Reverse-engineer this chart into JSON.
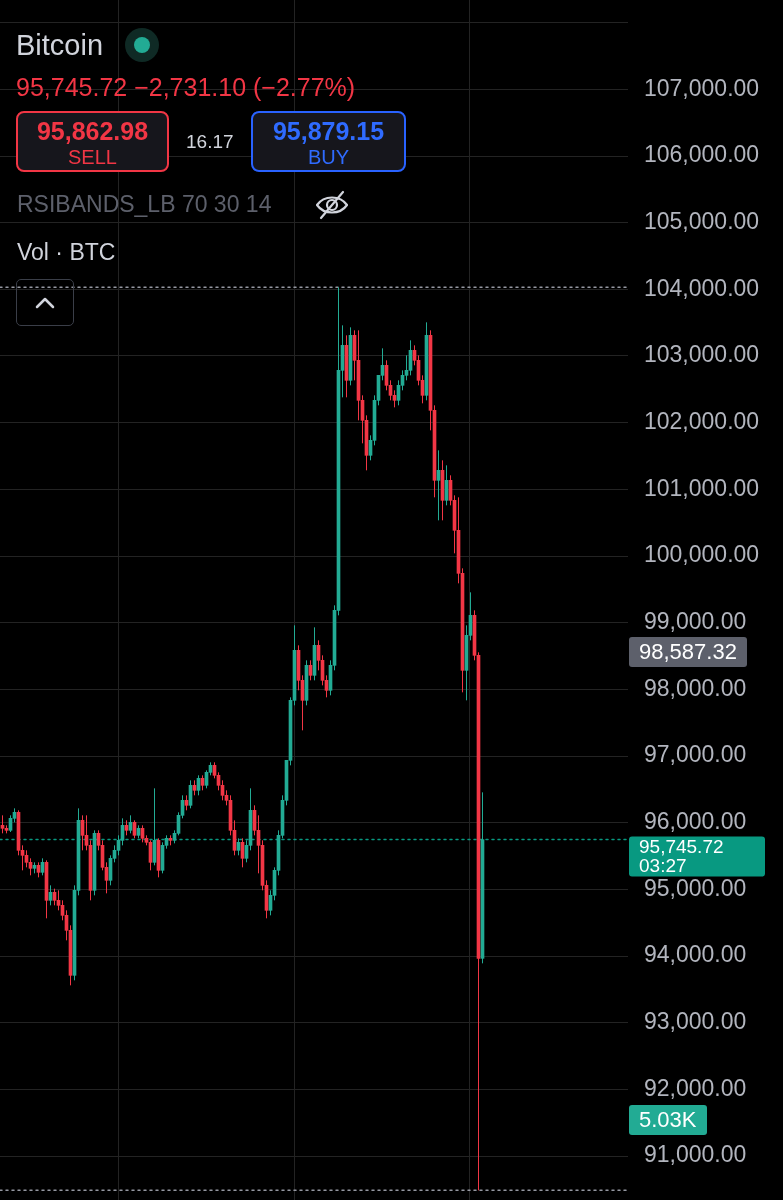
{
  "chart_data": {
    "type": "candlestick",
    "title": "Bitcoin",
    "subtitle": "95,745.72 −2,731.10 (−2.77%)",
    "annotations": [
      "95,862.98",
      "SELL",
      "16.17",
      "95,879.15",
      "BUY",
      "RSIBANDS_LB 70 30 14",
      "Vol · BTC",
      "98,587.32",
      "5.03K"
    ],
    "categories": [
      null,
      null,
      null,
      null,
      null,
      null,
      null,
      null,
      null,
      null,
      null,
      null,
      null,
      null,
      null,
      null,
      null,
      null,
      null,
      null,
      null,
      null,
      null,
      null,
      null,
      null,
      null,
      null,
      null,
      null,
      null,
      null,
      null,
      null,
      null,
      null,
      null,
      null,
      null,
      null,
      null,
      null,
      null,
      null,
      null,
      null,
      null,
      null,
      null,
      null,
      null,
      null,
      null,
      null,
      null,
      null,
      null,
      null,
      null,
      null,
      null,
      null,
      null,
      null,
      null,
      null,
      null,
      null,
      null,
      null,
      null,
      null,
      null,
      null,
      null,
      null,
      null,
      null,
      null,
      null,
      null,
      null,
      null,
      null,
      null,
      null,
      null,
      null,
      null,
      null,
      null,
      null,
      null,
      null,
      null,
      null,
      null,
      null,
      null,
      null,
      null,
      null,
      null,
      null,
      null,
      null,
      null,
      null,
      null,
      null,
      null,
      null,
      null,
      null,
      null,
      null,
      null,
      null,
      null,
      null,
      null,
      null,
      null,
      null,
      null,
      null,
      null,
      null,
      null,
      null,
      null,
      null,
      null,
      null,
      null,
      null,
      null,
      null,
      null,
      null,
      null,
      null,
      null,
      null,
      null,
      null,
      null,
      null,
      null,
      null,
      null,
      null,
      null,
      null,
      null,
      null,
      null
    ],
    "ohlc": [
      [
        95960,
        96110,
        95840,
        95915
      ],
      [
        95915,
        95960,
        95840,
        95885
      ],
      [
        95885,
        96110,
        95860,
        96065
      ],
      [
        96065,
        96215,
        96005,
        96155
      ],
      [
        96155,
        96185,
        95510,
        95585
      ],
      [
        95585,
        95660,
        95285,
        95510
      ],
      [
        95510,
        95585,
        95330,
        95405
      ],
      [
        95405,
        95465,
        95210,
        95315
      ],
      [
        95315,
        95405,
        95240,
        95360
      ],
      [
        95360,
        95405,
        95180,
        95255
      ],
      [
        95255,
        95465,
        95210,
        95405
      ],
      [
        95405,
        95435,
        94565,
        94835
      ],
      [
        94835,
        95060,
        94760,
        94955
      ],
      [
        94955,
        95010,
        94760,
        94835
      ],
      [
        94835,
        94985,
        94685,
        94760
      ],
      [
        94760,
        94835,
        94535,
        94610
      ],
      [
        94610,
        94685,
        94235,
        94385
      ],
      [
        94385,
        94460,
        93560,
        93710
      ],
      [
        93710,
        95060,
        93635,
        94985
      ],
      [
        94985,
        96215,
        94910,
        96035
      ],
      [
        96035,
        96110,
        95585,
        95810
      ],
      [
        95810,
        96110,
        95585,
        95660
      ],
      [
        95660,
        95735,
        94835,
        94985
      ],
      [
        94985,
        95885,
        94910,
        95840
      ],
      [
        95840,
        95885,
        95585,
        95660
      ],
      [
        95660,
        95735,
        95285,
        95330
      ],
      [
        95330,
        95405,
        94940,
        95135
      ],
      [
        95135,
        95510,
        95060,
        95465
      ],
      [
        95465,
        95660,
        95405,
        95585
      ],
      [
        95585,
        95810,
        95510,
        95735
      ],
      [
        95735,
        96065,
        95660,
        95960
      ],
      [
        95960,
        96035,
        95810,
        95885
      ],
      [
        95885,
        96110,
        95840,
        96005
      ],
      [
        96005,
        96035,
        95765,
        95810
      ],
      [
        95810,
        95960,
        95765,
        95915
      ],
      [
        95915,
        95960,
        95705,
        95765
      ],
      [
        95765,
        95810,
        95660,
        95705
      ],
      [
        95705,
        95735,
        95285,
        95405
      ],
      [
        95405,
        96515,
        95360,
        95735
      ],
      [
        95735,
        95765,
        95180,
        95285
      ],
      [
        95285,
        95705,
        95240,
        95660
      ],
      [
        95660,
        95810,
        95610,
        95765
      ],
      [
        95765,
        95810,
        95660,
        95735
      ],
      [
        95735,
        95885,
        95690,
        95840
      ],
      [
        95840,
        96155,
        95810,
        96110
      ],
      [
        96110,
        96410,
        96065,
        96335
      ],
      [
        96335,
        96410,
        96185,
        96260
      ],
      [
        96260,
        96635,
        96215,
        96560
      ],
      [
        96560,
        96635,
        96410,
        96485
      ],
      [
        96485,
        96710,
        96410,
        96665
      ],
      [
        96665,
        96710,
        96485,
        96560
      ],
      [
        96560,
        96785,
        96515,
        96755
      ],
      [
        96755,
        96905,
        96710,
        96860
      ],
      [
        96860,
        96905,
        96665,
        96710
      ],
      [
        96710,
        96755,
        96485,
        96560
      ],
      [
        96560,
        96635,
        96335,
        96410
      ],
      [
        96410,
        96485,
        96260,
        96335
      ],
      [
        96335,
        96410,
        95810,
        95885
      ],
      [
        95885,
        96035,
        95510,
        95585
      ],
      [
        95585,
        95765,
        95510,
        95705
      ],
      [
        95705,
        95765,
        95330,
        95465
      ],
      [
        95465,
        95735,
        95405,
        95660
      ],
      [
        95660,
        96515,
        95585,
        96185
      ],
      [
        96185,
        96260,
        95810,
        95885
      ],
      [
        95885,
        96110,
        95240,
        95660
      ],
      [
        95660,
        95735,
        94985,
        95060
      ],
      [
        95060,
        95135,
        94565,
        94685
      ],
      [
        94685,
        94985,
        94610,
        94910
      ],
      [
        94910,
        95330,
        94835,
        95285
      ],
      [
        95285,
        95885,
        95210,
        95810
      ],
      [
        95810,
        96410,
        95765,
        96335
      ],
      [
        96335,
        96935,
        96260,
        96935
      ],
      [
        96935,
        97880,
        96860,
        97835
      ],
      [
        97835,
        98960,
        97760,
        98585
      ],
      [
        98585,
        98660,
        97985,
        98135
      ],
      [
        98135,
        98210,
        97385,
        97835
      ],
      [
        97835,
        98435,
        97760,
        98360
      ],
      [
        98360,
        98435,
        98135,
        98210
      ],
      [
        98210,
        98930,
        98135,
        98660
      ],
      [
        98660,
        98735,
        98285,
        98435
      ],
      [
        98435,
        98510,
        98060,
        98135
      ],
      [
        98135,
        98210,
        97880,
        97985
      ],
      [
        97985,
        98435,
        97910,
        98360
      ],
      [
        98360,
        99260,
        98285,
        99185
      ],
      [
        99185,
        104030,
        99110,
        102785
      ],
      [
        102785,
        103460,
        102380,
        103160
      ],
      [
        103160,
        103310,
        102380,
        102635
      ],
      [
        102635,
        103430,
        102560,
        103310
      ],
      [
        103310,
        103385,
        102635,
        102935
      ],
      [
        102935,
        103385,
        102035,
        102335
      ],
      [
        102335,
        102410,
        101690,
        102035
      ],
      [
        102035,
        102110,
        101285,
        101510
      ],
      [
        101510,
        101810,
        101435,
        101735
      ],
      [
        101735,
        102410,
        101660,
        102335
      ],
      [
        102335,
        102710,
        102260,
        102710
      ],
      [
        102710,
        103115,
        102635,
        102860
      ],
      [
        102860,
        102935,
        102485,
        102560
      ],
      [
        102560,
        102635,
        102335,
        102410
      ],
      [
        102410,
        102485,
        102230,
        102335
      ],
      [
        102335,
        102635,
        102260,
        102560
      ],
      [
        102560,
        102785,
        102485,
        102710
      ],
      [
        102710,
        103010,
        102635,
        102785
      ],
      [
        102785,
        103235,
        102710,
        103085
      ],
      [
        103085,
        103160,
        102860,
        102935
      ],
      [
        102935,
        103010,
        102560,
        102635
      ],
      [
        102635,
        102710,
        102290,
        102410
      ],
      [
        102410,
        103505,
        102335,
        103310
      ],
      [
        103310,
        103385,
        101885,
        102185
      ],
      [
        102185,
        102260,
        100880,
        101135
      ],
      [
        101135,
        101585,
        100535,
        101285
      ],
      [
        101285,
        101435,
        100535,
        100835
      ],
      [
        100835,
        101360,
        100760,
        101135
      ],
      [
        101135,
        101210,
        100760,
        100835
      ],
      [
        100835,
        100910,
        100040,
        100385
      ],
      [
        100385,
        100880,
        99590,
        99740
      ],
      [
        99740,
        99815,
        97955,
        98285
      ],
      [
        98285,
        98960,
        97835,
        98810
      ],
      [
        98810,
        99455,
        98735,
        99110
      ],
      [
        99110,
        99185,
        98435,
        98510
      ],
      [
        98510,
        98555,
        90485,
        93965
      ],
      [
        93965,
        96455,
        93890,
        95745.72
      ],
      null,
      null,
      null,
      null,
      null,
      null,
      null,
      null,
      null,
      null,
      null,
      null,
      null,
      null,
      null,
      null,
      null,
      null,
      null,
      null,
      null,
      null,
      null,
      null,
      null,
      null,
      null,
      null,
      null,
      null,
      null,
      null,
      null,
      null,
      null,
      null
    ],
    "colors": [
      "#f23645",
      "#f23645",
      "#22ab94",
      "#22ab94",
      "#f23645",
      "#f23645",
      "#f23645",
      "#f23645",
      "#22ab94",
      "#f23645",
      "#22ab94",
      "#f23645",
      "#22ab94",
      "#f23645",
      "#f23645",
      "#f23645",
      "#f23645",
      "#f23645",
      "#22ab94",
      "#22ab94",
      "#f23645",
      "#f23645",
      "#f23645",
      "#22ab94",
      "#f23645",
      "#f23645",
      "#f23645",
      "#22ab94",
      "#22ab94",
      "#22ab94",
      "#22ab94",
      "#f23645",
      "#22ab94",
      "#f23645",
      "#22ab94",
      "#f23645",
      "#f23645",
      "#f23645",
      "#22ab94",
      "#f23645",
      "#22ab94",
      "#22ab94",
      "#f23645",
      "#22ab94",
      "#22ab94",
      "#22ab94",
      "#f23645",
      "#22ab94",
      "#f23645",
      "#22ab94",
      "#f23645",
      "#22ab94",
      "#22ab94",
      "#f23645",
      "#f23645",
      "#f23645",
      "#f23645",
      "#f23645",
      "#f23645",
      "#22ab94",
      "#f23645",
      "#22ab94",
      "#22ab94",
      "#f23645",
      "#f23645",
      "#f23645",
      "#f23645",
      "#22ab94",
      "#22ab94",
      "#22ab94",
      "#22ab94",
      "#22ab94",
      "#22ab94",
      "#22ab94",
      "#f23645",
      "#f23645",
      "#22ab94",
      "#f23645",
      "#22ab94",
      "#f23645",
      "#f23645",
      "#f23645",
      "#22ab94",
      "#22ab94",
      "#22ab94",
      "#22ab94",
      "#f23645",
      "#22ab94",
      "#f23645",
      "#f23645",
      "#f23645",
      "#f23645",
      "#22ab94",
      "#22ab94",
      "#22ab94",
      "#22ab94",
      "#f23645",
      "#f23645",
      "#f23645",
      "#22ab94",
      "#22ab94",
      "#22ab94",
      "#22ab94",
      "#f23645",
      "#f23645",
      "#f23645",
      "#22ab94",
      "#f23645",
      "#f23645",
      "#22ab94",
      "#f23645",
      "#22ab94",
      "#f23645",
      "#f23645",
      "#f23645",
      "#f23645",
      "#22ab94",
      "#22ab94",
      "#f23645",
      "#f23645",
      "#22ab94",
      null,
      null,
      null,
      null,
      null,
      null,
      null,
      null,
      null,
      null,
      null,
      null,
      null,
      null,
      null,
      null,
      null,
      null,
      null,
      null,
      null,
      null,
      null,
      null,
      null,
      null,
      null,
      null,
      null,
      null,
      null,
      null,
      null,
      null,
      null,
      null
    ],
    "ylim": [
      90340,
      108340
    ],
    "yticks": [
      {
        "value": 108000,
        "label": null
      },
      {
        "value": 107000,
        "label": "107,000.00"
      },
      {
        "value": 106000,
        "label": "106,000.00"
      },
      {
        "value": 105000,
        "label": "105,000.00"
      },
      {
        "value": 104000,
        "label": "104,000.00"
      },
      {
        "value": 103000,
        "label": "103,000.00"
      },
      {
        "value": 102000,
        "label": "102,000.00"
      },
      {
        "value": 101000,
        "label": "101,000.00"
      },
      {
        "value": 100000,
        "label": "100,000.00"
      },
      {
        "value": 99000,
        "label": "99,000.00"
      },
      {
        "value": 98000,
        "label": "98,000.00"
      },
      {
        "value": 97000,
        "label": "97,000.00"
      },
      {
        "value": 96000,
        "label": "96,000.00"
      },
      {
        "value": 95000,
        "label": "95,000.00"
      },
      {
        "value": 94000,
        "label": "94,000.00"
      },
      {
        "value": 93000,
        "label": "93,000.00"
      },
      {
        "value": 92000,
        "label": "92,000.00"
      },
      {
        "value": 91000,
        "label": "91,000.00"
      }
    ],
    "ref_lines": [
      {
        "axis": "y",
        "value": 104030,
        "color": "#9598a1",
        "line_style": "dotted"
      },
      {
        "axis": "y",
        "value": 95745.72,
        "label": "95,745.72\n03:27",
        "color": "#089981",
        "line_style": "dotted"
      },
      {
        "axis": "y",
        "value": 90485,
        "color": "#9598a1",
        "line_style": "dotted"
      }
    ],
    "grid": true,
    "tick_labels": "y"
  }
}
